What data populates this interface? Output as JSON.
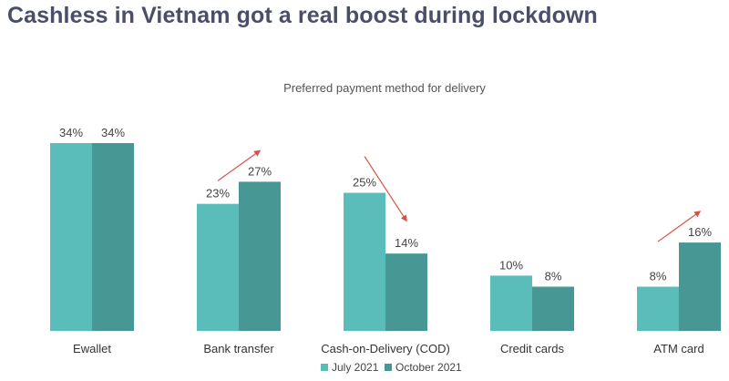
{
  "headline": "Cashless in Vietnam got a real boost during lockdown",
  "colors": {
    "july": "#5bbdb9",
    "october": "#479894",
    "arrow": "#d9504a"
  },
  "chart_data": {
    "type": "bar",
    "title": "Preferred payment method for delivery",
    "categories": [
      "Ewallet",
      "Bank transfer",
      "Cash-on-Delivery (COD)",
      "Credit cards",
      "ATM card"
    ],
    "series": [
      {
        "name": "July 2021",
        "values": [
          34,
          23,
          25,
          10,
          8
        ],
        "labels": [
          "34%",
          "23%",
          "25%",
          "10%",
          "8%"
        ]
      },
      {
        "name": "October 2021",
        "values": [
          34,
          27,
          14,
          8,
          16
        ],
        "labels": [
          "34%",
          "27%",
          "14%",
          "8%",
          "16%"
        ]
      }
    ],
    "ylim": [
      0,
      34
    ],
    "trend_arrows": [
      {
        "category": "Bank transfer",
        "direction": "up"
      },
      {
        "category": "Cash-on-Delivery (COD)",
        "direction": "down"
      },
      {
        "category": "ATM card",
        "direction": "up"
      }
    ],
    "legend": "bottom-center"
  }
}
